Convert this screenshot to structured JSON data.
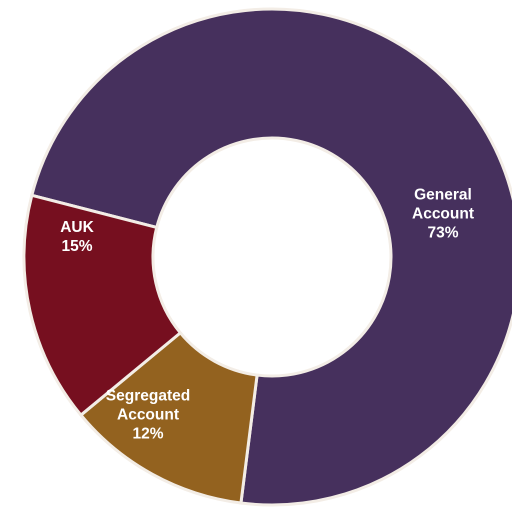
{
  "chart_data": {
    "type": "pie",
    "variant": "donut",
    "title": "",
    "legend": "none",
    "slices": [
      {
        "label_lines": [
          "General",
          "Account",
          "73%"
        ],
        "value": 73,
        "color": "#46305d"
      },
      {
        "label_lines": [
          "Segregated",
          "Account",
          "12%"
        ],
        "value": 12,
        "color": "#93621f"
      },
      {
        "label_lines": [
          "AUK",
          "15%"
        ],
        "value": 15,
        "color": "#760f1f"
      }
    ]
  }
}
